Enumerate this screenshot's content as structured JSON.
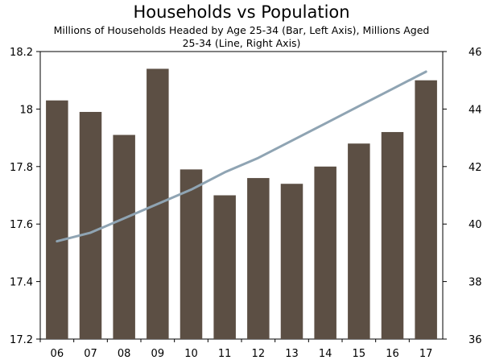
{
  "chart_data": {
    "type": "bar",
    "title": "Households vs Population",
    "subtitle": "Millions of Households Headed by Age 25-34 (Bar, Left Axis), Millions Aged 25-34 (Line, Right Axis)",
    "categories": [
      "06",
      "07",
      "08",
      "09",
      "10",
      "11",
      "12",
      "13",
      "14",
      "15",
      "16",
      "17"
    ],
    "series": [
      {
        "name": "Households Headed by Age 25-34",
        "type": "bar",
        "axis": "left",
        "values": [
          18.03,
          17.99,
          17.91,
          18.14,
          17.79,
          17.7,
          17.76,
          17.74,
          17.8,
          17.88,
          17.92,
          18.1
        ]
      },
      {
        "name": "Population Aged 25-34",
        "type": "line",
        "axis": "right",
        "values": [
          39.4,
          39.7,
          40.2,
          40.7,
          41.2,
          41.8,
          42.3,
          42.9,
          43.5,
          44.1,
          44.7,
          45.3
        ]
      }
    ],
    "y_left": {
      "min": 17.2,
      "max": 18.2,
      "ticks": [
        "17.2",
        "17.4",
        "17.6",
        "17.8",
        "18",
        "18.2"
      ]
    },
    "y_right": {
      "min": 36,
      "max": 46,
      "ticks": [
        "36",
        "38",
        "40",
        "42",
        "44",
        "46"
      ]
    },
    "colors": {
      "bar": "#5c4f44",
      "line": "#8fa4b3",
      "axis": "#000000"
    }
  }
}
